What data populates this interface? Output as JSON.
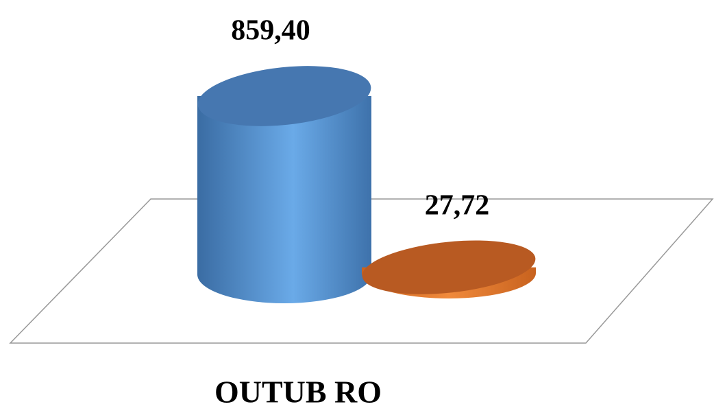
{
  "chart_data": {
    "type": "cylinder",
    "categories": [
      "OUTUB RO"
    ],
    "series": [
      {
        "color": "#4f8fd0",
        "values": [
          859.4
        ],
        "value_labels": [
          "859,40"
        ]
      },
      {
        "color": "#c0601f",
        "values": [
          27.72
        ],
        "value_labels": [
          "27,72"
        ]
      }
    ]
  }
}
